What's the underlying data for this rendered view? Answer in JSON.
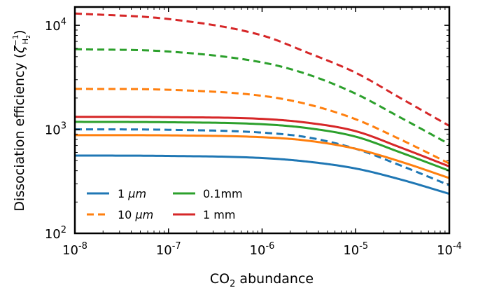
{
  "chart_data": {
    "type": "line",
    "xlabel": "CO$_2$ abundance",
    "xlabel_main": "CO",
    "xlabel_sub": "2",
    "xlabel_rest": " abundance",
    "ylabel": "Dissociation efficiency (ζ_H2^-1)",
    "ylabel_main": "Dissociation efficiency (",
    "ylabel_zeta": "ζ",
    "ylabel_sup": "−1",
    "ylabel_sub": "H",
    "ylabel_subsub": "2",
    "ylabel_close": ")",
    "x_scale": "log",
    "y_scale": "log",
    "xlim": [
      1e-08,
      0.0001
    ],
    "ylim": [
      100,
      15000
    ],
    "x_ticks": [
      {
        "base": "10",
        "exp": "-8"
      },
      {
        "base": "10",
        "exp": "-7"
      },
      {
        "base": "10",
        "exp": "-6"
      },
      {
        "base": "10",
        "exp": "-5"
      },
      {
        "base": "10",
        "exp": "-4"
      }
    ],
    "y_ticks": [
      {
        "base": "10",
        "exp": "2"
      },
      {
        "base": "10",
        "exp": "3"
      },
      {
        "base": "10",
        "exp": "4"
      }
    ],
    "legend_placement": "lower-left",
    "legend": [
      {
        "label_num": "1",
        "label_unit": " μm",
        "color": "#1f77b4"
      },
      {
        "label_num": "10",
        "label_unit": " μm",
        "color": "#ff7f0e"
      },
      {
        "label_num": "0.1mm",
        "label_unit": "",
        "color": "#2ca02c"
      },
      {
        "label_num": "1 mm",
        "label_unit": "",
        "color": "#d62728"
      }
    ],
    "x": [
      1e-08,
      1e-07,
      1e-06,
      3e-06,
      1e-05,
      3e-05,
      0.0001
    ],
    "series": [
      {
        "name": "1 μm",
        "style": "solid",
        "color": "#1f77b4",
        "values": [
          560,
          555,
          530,
          490,
          420,
          330,
          240
        ]
      },
      {
        "name": "1 μm",
        "style": "dashed",
        "color": "#1f77b4",
        "values": [
          1000,
          990,
          930,
          840,
          650,
          450,
          290
        ]
      },
      {
        "name": "10 μm",
        "style": "solid",
        "color": "#ff7f0e",
        "values": [
          880,
          875,
          840,
          780,
          650,
          490,
          340
        ]
      },
      {
        "name": "10 μm",
        "style": "dashed",
        "color": "#ff7f0e",
        "values": [
          2450,
          2400,
          2100,
          1750,
          1250,
          800,
          470
        ]
      },
      {
        "name": "0.1mm",
        "style": "solid",
        "color": "#2ca02c",
        "values": [
          1180,
          1170,
          1120,
          1030,
          850,
          600,
          400
        ]
      },
      {
        "name": "0.1mm",
        "style": "dashed",
        "color": "#2ca02c",
        "values": [
          5900,
          5600,
          4400,
          3400,
          2200,
          1300,
          720
        ]
      },
      {
        "name": "1 mm",
        "style": "solid",
        "color": "#d62728",
        "values": [
          1320,
          1310,
          1260,
          1160,
          960,
          670,
          440
        ]
      },
      {
        "name": "1 mm",
        "style": "dashed",
        "color": "#d62728",
        "values": [
          13000,
          11500,
          8000,
          5500,
          3500,
          2000,
          1080
        ]
      }
    ]
  }
}
